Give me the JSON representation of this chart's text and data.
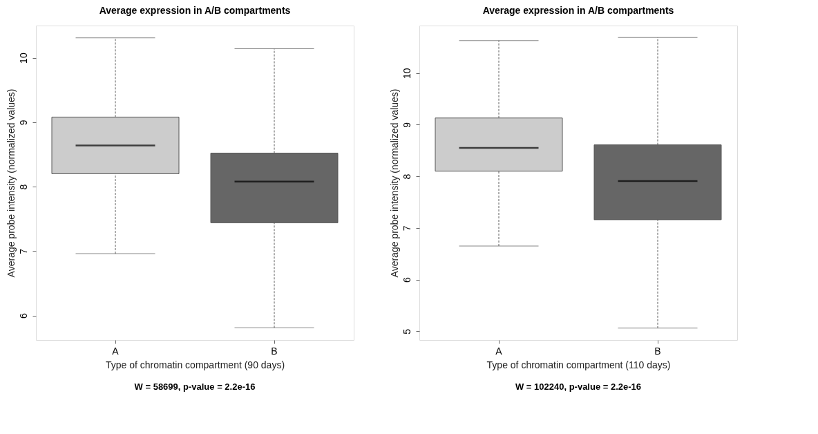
{
  "chart_data": [
    {
      "type": "box",
      "title": "Average expression in A/B compartments",
      "xlabel": "Type of chromatin compartment (90 days)",
      "ylabel": "Average probe intensity (normalized values)",
      "categories": [
        "A",
        "B"
      ],
      "colors": [
        "#cccccc",
        "#666666"
      ],
      "boxes": [
        {
          "low": 6.96,
          "q1": 8.2,
          "median": 8.64,
          "q3": 9.08,
          "high": 10.31
        },
        {
          "low": 5.81,
          "q1": 7.44,
          "median": 8.08,
          "q3": 8.52,
          "high": 10.14
        }
      ],
      "ylim": [
        5.62,
        10.5
      ],
      "yticks": [
        6,
        7,
        8,
        9,
        10
      ],
      "annotations": [
        "W = 58699, p-value = 2.2e-16"
      ]
    },
    {
      "type": "box",
      "title": "Average expression in A/B compartments",
      "xlabel": "Type of chromatin compartment (110 days)",
      "ylabel": "Average probe intensity (normalized values)",
      "categories": [
        "A",
        "B"
      ],
      "colors": [
        "#cccccc",
        "#666666"
      ],
      "boxes": [
        {
          "low": 6.65,
          "q1": 8.1,
          "median": 8.55,
          "q3": 9.13,
          "high": 10.63
        },
        {
          "low": 5.06,
          "q1": 7.16,
          "median": 7.91,
          "q3": 8.61,
          "high": 10.69
        }
      ],
      "ylim": [
        4.83,
        10.92
      ],
      "yticks": [
        5,
        6,
        7,
        8,
        9,
        10
      ],
      "annotations": [
        "W = 102240, p-value = 2.2e-16"
      ]
    }
  ]
}
